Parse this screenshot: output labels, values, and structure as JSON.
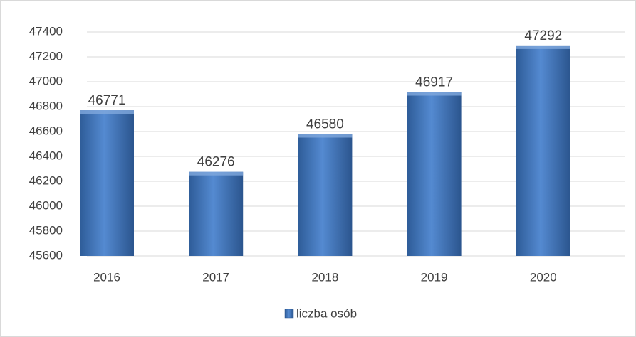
{
  "chart_data": {
    "type": "bar",
    "categories": [
      "2016",
      "2017",
      "2018",
      "2019",
      "2020"
    ],
    "series": [
      {
        "name": "liczba osób",
        "color": "#3d7acb",
        "values": [
          46771,
          46276,
          46580,
          46917,
          47292
        ]
      }
    ],
    "ylim": [
      45600,
      47400
    ],
    "yticks": [
      45600,
      45800,
      46000,
      46200,
      46400,
      46600,
      46800,
      47000,
      47200,
      47400
    ],
    "grid": true,
    "legend": "bottom",
    "data_labels": true
  }
}
